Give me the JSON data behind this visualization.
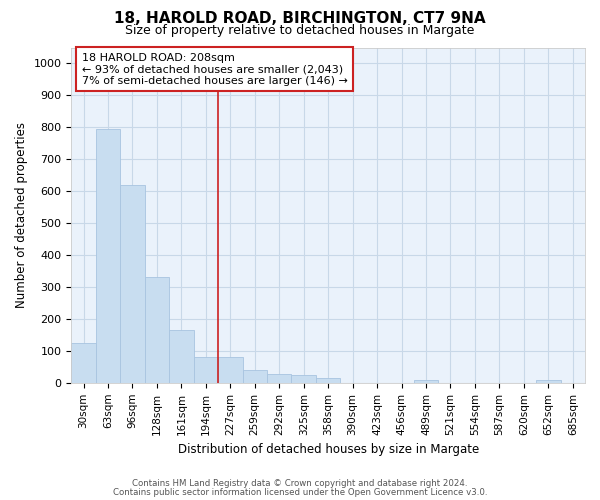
{
  "title1": "18, HAROLD ROAD, BIRCHINGTON, CT7 9NA",
  "title2": "Size of property relative to detached houses in Margate",
  "xlabel": "Distribution of detached houses by size in Margate",
  "ylabel": "Number of detached properties",
  "categories": [
    "30sqm",
    "63sqm",
    "96sqm",
    "128sqm",
    "161sqm",
    "194sqm",
    "227sqm",
    "259sqm",
    "292sqm",
    "325sqm",
    "358sqm",
    "390sqm",
    "423sqm",
    "456sqm",
    "489sqm",
    "521sqm",
    "554sqm",
    "587sqm",
    "620sqm",
    "652sqm",
    "685sqm"
  ],
  "values": [
    125,
    795,
    620,
    330,
    165,
    80,
    80,
    40,
    28,
    25,
    15,
    0,
    0,
    0,
    8,
    0,
    0,
    0,
    0,
    8,
    0
  ],
  "bar_color": "#c8ddf0",
  "bar_edge_color": "#a8c4e0",
  "annotation_title": "18 HAROLD ROAD: 208sqm",
  "annotation_line1": "← 93% of detached houses are smaller (2,043)",
  "annotation_line2": "7% of semi-detached houses are larger (146) →",
  "annotation_box_edge": "#cc2222",
  "vline_color": "#cc2222",
  "ylim": [
    0,
    1050
  ],
  "yticks": [
    0,
    100,
    200,
    300,
    400,
    500,
    600,
    700,
    800,
    900,
    1000
  ],
  "footnote1": "Contains HM Land Registry data © Crown copyright and database right 2024.",
  "footnote2": "Contains public sector information licensed under the Open Government Licence v3.0.",
  "grid_color": "#c8d8e8",
  "bg_color": "#eaf2fb",
  "fig_bg_color": "#ffffff"
}
